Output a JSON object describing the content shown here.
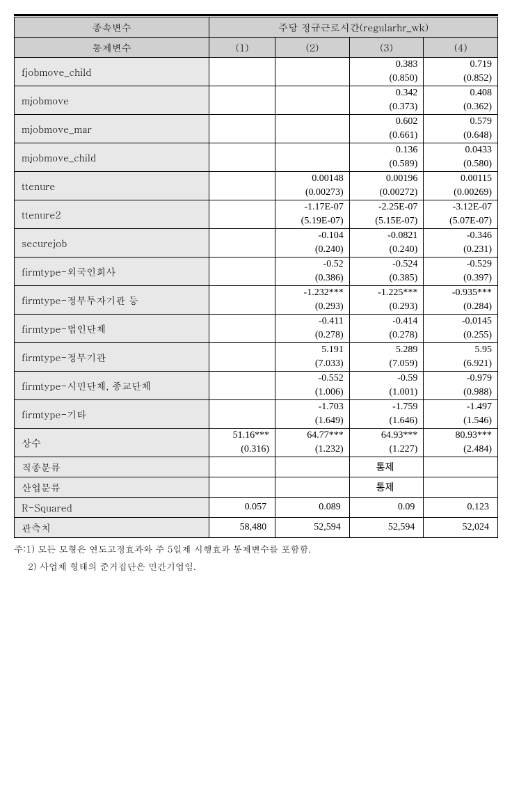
{
  "table": {
    "header": {
      "dependent_var_label": "종속변수",
      "dependent_var_value": "주당 정규근로시간(regularhr_wk)",
      "control_var_label": "통제변수",
      "col1": "(1)",
      "col2": "(2)",
      "col3": "(3)",
      "col4": "(4)"
    },
    "rows": [
      {
        "label": "fjobmove_child",
        "c1v": "",
        "c1s": "",
        "c2v": "",
        "c2s": "",
        "c3v": "0.383",
        "c3s": "(0.850)",
        "c4v": "0.719",
        "c4s": "(0.852)"
      },
      {
        "label": "mjobmove",
        "c1v": "",
        "c1s": "",
        "c2v": "",
        "c2s": "",
        "c3v": "0.342",
        "c3s": "(0.373)",
        "c4v": "0.408",
        "c4s": "(0.362)"
      },
      {
        "label": "mjobmove_mar",
        "c1v": "",
        "c1s": "",
        "c2v": "",
        "c2s": "",
        "c3v": "0.602",
        "c3s": "(0.661)",
        "c4v": "0.579",
        "c4s": "(0.648)"
      },
      {
        "label": "mjobmove_child",
        "c1v": "",
        "c1s": "",
        "c2v": "",
        "c2s": "",
        "c3v": "0.136",
        "c3s": "(0.589)",
        "c4v": "0.0433",
        "c4s": "(0.580)"
      },
      {
        "label": "ttenure",
        "c1v": "",
        "c1s": "",
        "c2v": "0.00148",
        "c2s": "(0.00273)",
        "c3v": "0.00196",
        "c3s": "(0.00272)",
        "c4v": "0.00115",
        "c4s": "(0.00269)"
      },
      {
        "label": "ttenure2",
        "c1v": "",
        "c1s": "",
        "c2v": "-1.17E-07",
        "c2s": "(5.19E-07)",
        "c3v": "-2.25E-07",
        "c3s": "(5.15E-07)",
        "c4v": "-3.12E-07",
        "c4s": "(5.07E-07)"
      },
      {
        "label": "securejob",
        "c1v": "",
        "c1s": "",
        "c2v": "-0.104",
        "c2s": "(0.240)",
        "c3v": "-0.0821",
        "c3s": "(0.240)",
        "c4v": "-0.346",
        "c4s": "(0.231)"
      },
      {
        "label": "firmtype-외국인회사",
        "c1v": "",
        "c1s": "",
        "c2v": "-0.52",
        "c2s": "(0.386)",
        "c3v": "-0.524",
        "c3s": "(0.385)",
        "c4v": "-0.529",
        "c4s": "(0.397)"
      },
      {
        "label": "firmtype-정부투자기관 등",
        "c1v": "",
        "c1s": "",
        "c2v": "-1.232***",
        "c2s": "(0.293)",
        "c3v": "-1.225***",
        "c3s": "(0.293)",
        "c4v": "-0.935***",
        "c4s": "(0.284)"
      },
      {
        "label": "firmtype-법인단체",
        "c1v": "",
        "c1s": "",
        "c2v": "-0.411",
        "c2s": "(0.278)",
        "c3v": "-0.414",
        "c3s": "(0.278)",
        "c4v": "-0.0145",
        "c4s": "(0.255)"
      },
      {
        "label": "firmtype-정부기관",
        "c1v": "",
        "c1s": "",
        "c2v": "5.191",
        "c2s": "(7.033)",
        "c3v": "5.289",
        "c3s": "(7.059)",
        "c4v": "5.95",
        "c4s": "(6.921)"
      },
      {
        "label": "firmtype-시민단체, 종교단체",
        "c1v": "",
        "c1s": "",
        "c2v": "-0.552",
        "c2s": "(1.006)",
        "c3v": "-0.59",
        "c3s": "(1.001)",
        "c4v": "-0.979",
        "c4s": "(0.988)"
      },
      {
        "label": "firmtype-기타",
        "c1v": "",
        "c1s": "",
        "c2v": "-1.703",
        "c2s": "(1.649)",
        "c3v": "-1.759",
        "c3s": "(1.646)",
        "c4v": "-1.497",
        "c4s": "(1.546)"
      },
      {
        "label": "상수",
        "c1v": "51.16***",
        "c1s": "(0.316)",
        "c2v": "64.77***",
        "c2s": "(1.232)",
        "c3v": "64.93***",
        "c3s": "(1.227)",
        "c4v": "80.93***",
        "c4s": "(2.484)"
      }
    ],
    "single_rows": [
      {
        "label": "직종분류",
        "c1": "",
        "c2": "",
        "c3": "통제",
        "c4": ""
      },
      {
        "label": "산업분류",
        "c1": "",
        "c2": "",
        "c3": "통제",
        "c4": ""
      },
      {
        "label": "R-Squared",
        "c1": "0.057",
        "c2": "0.089",
        "c3": "0.09",
        "c4": "0.123"
      },
      {
        "label": "관측치",
        "c1": "58,480",
        "c2": "52,594",
        "c3": "52,594",
        "c4": "52,024"
      }
    ],
    "notes": {
      "note1": "주:1) 모든 모형은 연도고정효과와 주 5일제 시행효과 통제변수를 포함함.",
      "note2": "2) 사업체 형태의 준거집단은 민간기업임."
    }
  }
}
